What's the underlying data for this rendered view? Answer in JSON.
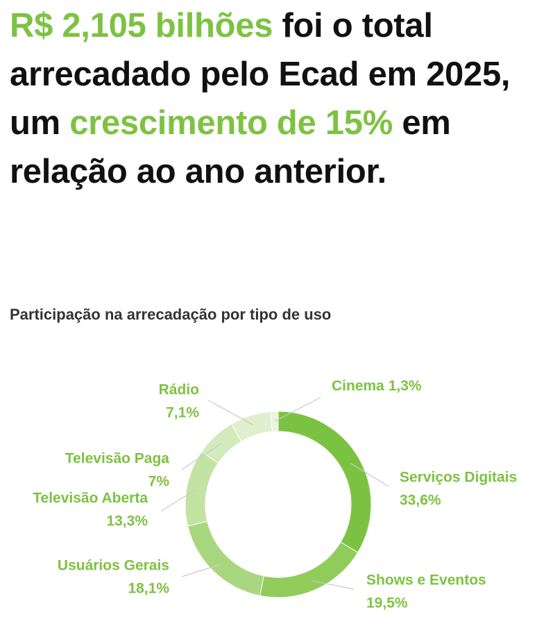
{
  "headline": [
    {
      "text": "R$ 2,105 bilhões",
      "highlight": true
    },
    {
      "text": " foi o total arrecadado pelo Ecad em 2025, um ",
      "highlight": false
    },
    {
      "text": "crescimento de 15%",
      "highlight": true
    },
    {
      "text": " em relação ao ano anterior.",
      "highlight": false
    }
  ],
  "chart_data": {
    "type": "pie",
    "donut": true,
    "title": "Participação na arrecadação por tipo de uso",
    "categories": [
      "Serviços Digitais",
      "Shows e Eventos",
      "Usuários Gerais",
      "Televisão Aberta",
      "Televisão Paga",
      "Rádio",
      "Cinema"
    ],
    "values": [
      33.6,
      19.5,
      18.1,
      13.3,
      7,
      7.1,
      1.3
    ],
    "value_labels": [
      "33,6%",
      "19,5%",
      "18,1%",
      "13,3%",
      "7%",
      "7,1%",
      "1,3%"
    ],
    "colors": [
      "#7cc242",
      "#91cc5a",
      "#a9d77f",
      "#c3e3a2",
      "#d3eabb",
      "#e0f0cf",
      "#eaf5de"
    ]
  }
}
